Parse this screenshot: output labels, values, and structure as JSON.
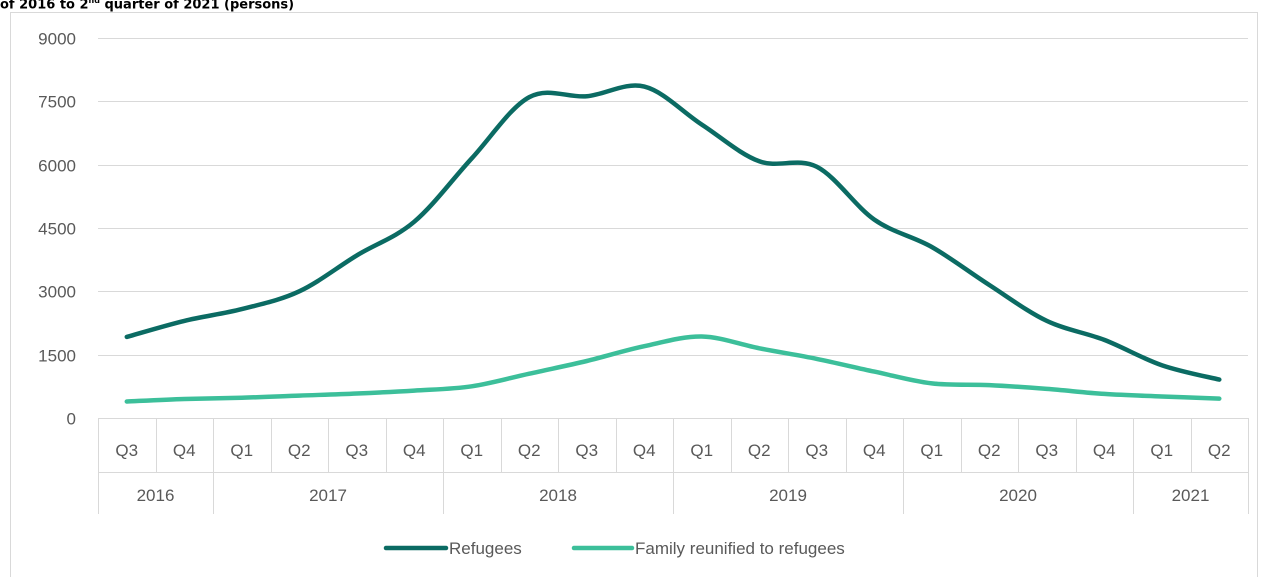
{
  "caption": {
    "prefix": "of 2016 to 2",
    "superscript": "nd",
    "suffix": " quarter of 2021 (persons)"
  },
  "colors": {
    "refugees": "#0b6b63",
    "family": "#3cbf9a",
    "grid": "#d9d9d9",
    "text": "#595959"
  },
  "chart_data": {
    "type": "line",
    "title": "",
    "xlabel": "",
    "ylabel": "",
    "ylim": [
      0,
      9000
    ],
    "yticks": [
      0,
      1500,
      3000,
      4500,
      6000,
      7500,
      9000
    ],
    "grid": true,
    "legend_position": "bottom",
    "x": [
      "Q3",
      "Q4",
      "Q1",
      "Q2",
      "Q3",
      "Q4",
      "Q1",
      "Q2",
      "Q3",
      "Q4",
      "Q1",
      "Q2",
      "Q3",
      "Q4",
      "Q1",
      "Q2",
      "Q3",
      "Q4",
      "Q1",
      "Q2"
    ],
    "years": [
      {
        "label": "2016",
        "count": 2
      },
      {
        "label": "2017",
        "count": 4
      },
      {
        "label": "2018",
        "count": 4
      },
      {
        "label": "2019",
        "count": 4
      },
      {
        "label": "2020",
        "count": 4
      },
      {
        "label": "2021",
        "count": 2
      }
    ],
    "series": [
      {
        "name": "Refugees",
        "color": "#0b6b63",
        "values": [
          1920,
          2300,
          2580,
          3000,
          3850,
          4650,
          6150,
          7600,
          7620,
          7850,
          6950,
          6080,
          5950,
          4700,
          4050,
          3150,
          2300,
          1850,
          1250,
          910
        ]
      },
      {
        "name": "Family reunified to refugees",
        "color": "#3cbf9a",
        "values": [
          390,
          450,
          480,
          530,
          580,
          650,
          750,
          1050,
          1350,
          1700,
          1930,
          1650,
          1400,
          1100,
          820,
          780,
          690,
          570,
          510,
          460
        ]
      }
    ]
  }
}
